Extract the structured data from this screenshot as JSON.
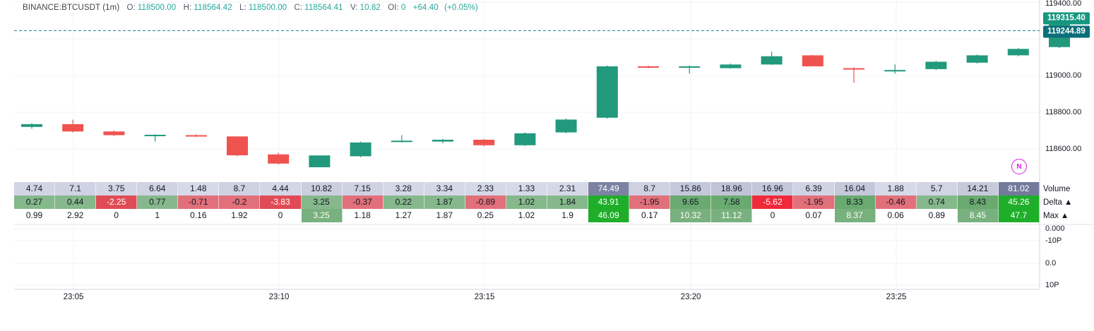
{
  "legend": {
    "symbol": "BINANCE:BTCUSDT (1m)",
    "o_label": "O:",
    "o_value": "118500.00",
    "h_label": "H:",
    "h_value": "118564.42",
    "l_label": "L:",
    "l_value": "118500.00",
    "c_label": "C:",
    "c_value": "118564.41",
    "v_label": "V:",
    "v_value": "10.82",
    "oi_label": "OI:",
    "oi_value": "0",
    "change": "+64.40",
    "change_pct": "(+0.05%)"
  },
  "price_axis": {
    "ticks": [
      "119400.00",
      "119000.00",
      "118800.00",
      "118600.00"
    ],
    "current_price_badge": "119315.40",
    "dashed_line_badge": "119244.89"
  },
  "indicator_axis": {
    "ticks": [
      "0.000",
      "-10P",
      "0.0",
      "10P"
    ]
  },
  "time_axis": {
    "ticks": [
      "23:05",
      "23:10",
      "23:15",
      "23:20",
      "23:25"
    ]
  },
  "table": {
    "row_labels": {
      "volume": "Volume",
      "delta": "Delta ▲",
      "max": "Max ▲"
    },
    "volume": [
      "4.74",
      "7.1",
      "3.75",
      "6.64",
      "1.48",
      "8.7",
      "4.44",
      "10.82",
      "7.15",
      "3.28",
      "3.34",
      "2.33",
      "1.33",
      "2.31",
      "74.49",
      "8.7",
      "15.86",
      "18.96",
      "16.96",
      "6.39",
      "16.04",
      "1.88",
      "5.7",
      "14.21",
      "81.02"
    ],
    "delta": [
      "0.27",
      "0.44",
      "-2.25",
      "0.77",
      "-0.71",
      "-0.2",
      "-3.83",
      "3.25",
      "-0.37",
      "0.22",
      "1.87",
      "-0.89",
      "1.02",
      "1.84",
      "43.91",
      "-1.95",
      "9.65",
      "7.58",
      "-5.62",
      "-1.95",
      "8.33",
      "-0.46",
      "0.74",
      "8.43",
      "45.26"
    ],
    "max": [
      "0.99",
      "2.92",
      "0",
      "1",
      "0.16",
      "1.92",
      "0",
      "3.25",
      "1.18",
      "1.27",
      "1.87",
      "0.25",
      "1.02",
      "1.9",
      "46.09",
      "0.17",
      "10.32",
      "11.12",
      "0",
      "0.07",
      "8.37",
      "0.06",
      "0.89",
      "8.45",
      "47.7"
    ]
  },
  "overlay_icon": {
    "name": "n-icon",
    "letter": "N"
  },
  "colors": {
    "up": "#26a69a",
    "down": "#ef5350",
    "up_body": "#22997d",
    "dashed_line": "#1e7a8c",
    "badge_dark": "#0b6e79",
    "badge_green": "#16967f"
  },
  "chart_data": {
    "type": "candlestick",
    "symbol": "BINANCE:BTCUSDT (1m)",
    "x": [
      "23:03",
      "23:04",
      "23:05",
      "23:06",
      "23:07",
      "23:08",
      "23:09",
      "23:10",
      "23:11",
      "23:12",
      "23:13",
      "23:14",
      "23:15",
      "23:16",
      "23:17",
      "23:18",
      "23:19",
      "23:20",
      "23:21",
      "23:22",
      "23:23",
      "23:24",
      "23:25",
      "23:26",
      "23:27",
      "23:28"
    ],
    "x_ticks": [
      "23:05",
      "23:10",
      "23:15",
      "23:20",
      "23:25"
    ],
    "ylim": [
      118420,
      119420
    ],
    "y_ticks": [
      119400,
      119000,
      118800,
      118600
    ],
    "candles": [
      {
        "o": 118720,
        "h": 118740,
        "l": 118710,
        "c": 118735
      },
      {
        "o": 118735,
        "h": 118760,
        "l": 118690,
        "c": 118695
      },
      {
        "o": 118695,
        "h": 118700,
        "l": 118670,
        "c": 118675
      },
      {
        "o": 118673,
        "h": 118680,
        "l": 118640,
        "c": 118677
      },
      {
        "o": 118675,
        "h": 118680,
        "l": 118665,
        "c": 118670
      },
      {
        "o": 118668,
        "h": 118670,
        "l": 118560,
        "c": 118565
      },
      {
        "o": 118570,
        "h": 118580,
        "l": 118515,
        "c": 118520
      },
      {
        "o": 118500,
        "h": 118564.42,
        "l": 118500,
        "c": 118564.41
      },
      {
        "o": 118560,
        "h": 118640,
        "l": 118555,
        "c": 118635
      },
      {
        "o": 118640,
        "h": 118675,
        "l": 118635,
        "c": 118645
      },
      {
        "o": 118640,
        "h": 118655,
        "l": 118630,
        "c": 118650
      },
      {
        "o": 118650,
        "h": 118655,
        "l": 118615,
        "c": 118620
      },
      {
        "o": 118620,
        "h": 118690,
        "l": 118615,
        "c": 118685
      },
      {
        "o": 118690,
        "h": 118765,
        "l": 118685,
        "c": 118760
      },
      {
        "o": 118770,
        "h": 119055,
        "l": 118765,
        "c": 119050
      },
      {
        "o": 119050,
        "h": 119055,
        "l": 119040,
        "c": 119045
      },
      {
        "o": 119045,
        "h": 119055,
        "l": 119010,
        "c": 119050
      },
      {
        "o": 119040,
        "h": 119065,
        "l": 119038,
        "c": 119060
      },
      {
        "o": 119060,
        "h": 119130,
        "l": 119058,
        "c": 119105
      },
      {
        "o": 119110,
        "h": 119112,
        "l": 119050,
        "c": 119050
      },
      {
        "o": 119040,
        "h": 119045,
        "l": 118960,
        "c": 119035
      },
      {
        "o": 119030,
        "h": 119060,
        "l": 119010,
        "c": 119030
      },
      {
        "o": 119035,
        "h": 119080,
        "l": 119030,
        "c": 119075
      },
      {
        "o": 119070,
        "h": 119115,
        "l": 119065,
        "c": 119110
      },
      {
        "o": 119110,
        "h": 119150,
        "l": 119105,
        "c": 119145
      },
      {
        "o": 119155,
        "h": 119320,
        "l": 119150,
        "c": 119315.4
      }
    ],
    "dashed_line_value": 119244.89
  }
}
